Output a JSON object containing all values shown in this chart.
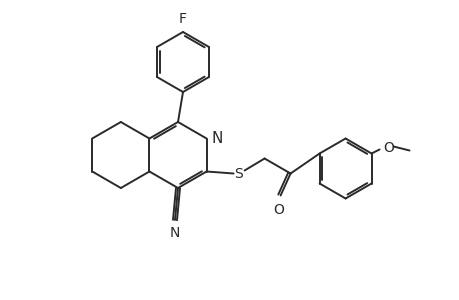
{
  "bg_color": "#ffffff",
  "line_color": "#2a2a2a",
  "line_width": 1.4,
  "font_size": 10,
  "atoms": {
    "F_label": "F",
    "N_label": "N",
    "S_label": "S",
    "CN_N_label": "N",
    "O_label": "O",
    "O_meth_label": "O"
  }
}
